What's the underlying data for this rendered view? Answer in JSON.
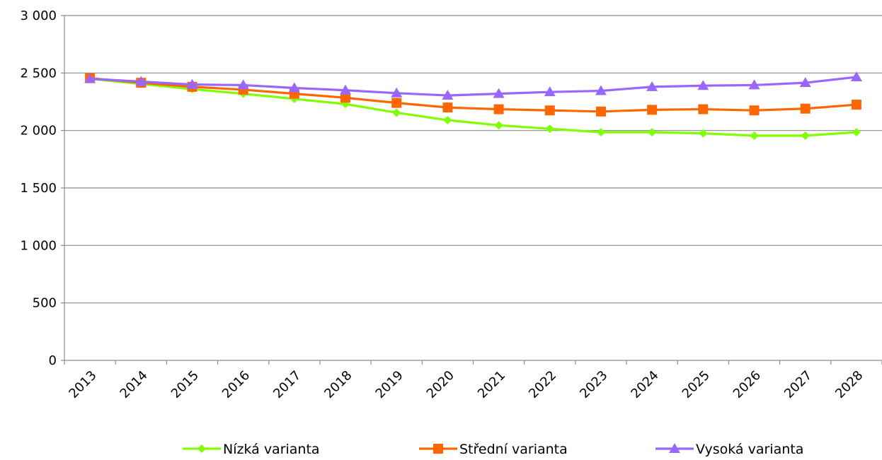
{
  "chart_data": {
    "type": "line",
    "categories": [
      "2013",
      "2014",
      "2015",
      "2016",
      "2017",
      "2018",
      "2019",
      "2020",
      "2021",
      "2022",
      "2023",
      "2024",
      "2025",
      "2026",
      "2027",
      "2028"
    ],
    "series": [
      {
        "name": "Nízká varianta",
        "color": "#7fff00",
        "marker": "diamond",
        "values": [
          2450,
          2405,
          2360,
          2320,
          2275,
          2230,
          2155,
          2090,
          2045,
          2015,
          1985,
          1985,
          1975,
          1955,
          1955,
          1985
        ]
      },
      {
        "name": "Střední varianta",
        "color": "#ff6600",
        "marker": "square",
        "values": [
          2455,
          2415,
          2380,
          2355,
          2320,
          2285,
          2240,
          2200,
          2185,
          2175,
          2165,
          2180,
          2185,
          2175,
          2190,
          2225
        ]
      },
      {
        "name": "Vysoká varianta",
        "color": "#9966ff",
        "marker": "triangle",
        "values": [
          2450,
          2425,
          2400,
          2395,
          2370,
          2350,
          2325,
          2305,
          2320,
          2335,
          2345,
          2380,
          2390,
          2395,
          2415,
          2465
        ]
      }
    ],
    "y_ticks": [
      {
        "value": 0,
        "label": "0"
      },
      {
        "value": 500,
        "label": "500"
      },
      {
        "value": 1000,
        "label": "1 000"
      },
      {
        "value": 1500,
        "label": "1 500"
      },
      {
        "value": 2000,
        "label": "2 000"
      },
      {
        "value": 2500,
        "label": "2 500"
      },
      {
        "value": 3000,
        "label": "3 000"
      }
    ],
    "ylim": [
      0,
      3000
    ],
    "grid": true,
    "legend_position": "bottom"
  }
}
